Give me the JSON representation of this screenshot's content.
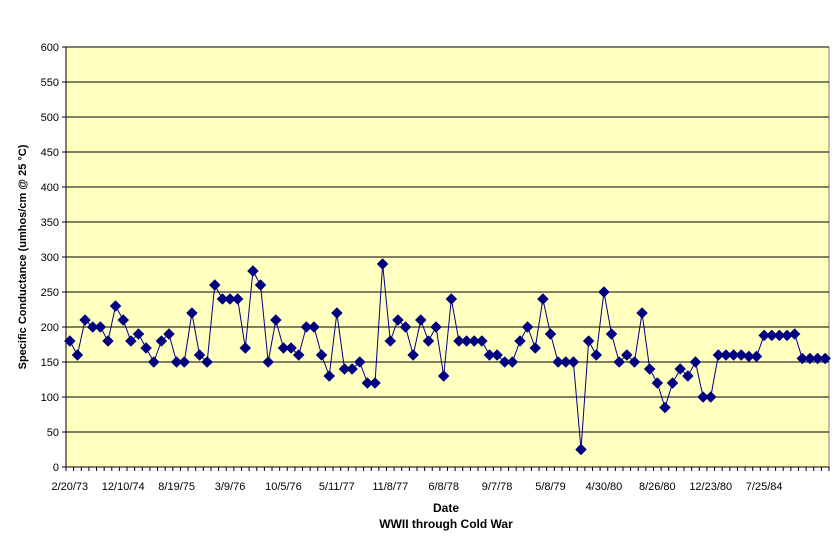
{
  "chart_data": {
    "type": "line",
    "title": "",
    "xlabel": "Date",
    "subtitle": "WWII through Cold War",
    "ylabel": "Specific Conductance (umhos/cm @ 25 °C)",
    "ylim": [
      0,
      600
    ],
    "yticks": [
      0,
      50,
      100,
      150,
      200,
      250,
      300,
      350,
      400,
      450,
      500,
      550,
      600
    ],
    "x_tick_labels": [
      {
        "label": "2/20/73",
        "index": 0
      },
      {
        "label": "12/10/74",
        "index": 7
      },
      {
        "label": "8/19/75",
        "index": 14
      },
      {
        "label": "3/9/76",
        "index": 21
      },
      {
        "label": "10/5/76",
        "index": 28
      },
      {
        "label": "5/11/77",
        "index": 35
      },
      {
        "label": "11/8/77",
        "index": 42
      },
      {
        "label": "6/8/78",
        "index": 49
      },
      {
        "label": "9/7/78",
        "index": 56
      },
      {
        "label": "5/8/79",
        "index": 63
      },
      {
        "label": "4/30/80",
        "index": 70
      },
      {
        "label": "8/26/80",
        "index": 77
      },
      {
        "label": "12/23/80",
        "index": 84
      },
      {
        "label": "7/25/84",
        "index": 91
      }
    ],
    "grid": "horizontal",
    "legend": "none",
    "colors": {
      "plot_background": "#FFFFC0",
      "series": "#000080",
      "gridline": "#000000"
    },
    "series": [
      {
        "values": [
          180,
          160,
          210,
          200,
          200,
          180,
          230,
          210,
          180,
          190,
          170,
          150,
          180,
          190,
          150,
          150,
          220,
          160,
          150,
          260,
          240,
          240,
          240,
          170,
          280,
          260,
          150,
          210,
          170,
          170,
          160,
          200,
          200,
          160,
          130,
          220,
          140,
          140,
          150,
          120,
          120,
          290,
          180,
          210,
          200,
          160,
          210,
          180,
          200,
          130,
          240,
          180,
          180,
          180,
          180,
          160,
          160,
          150,
          150,
          180,
          200,
          170,
          240,
          190,
          150,
          150,
          150,
          25,
          180,
          160,
          250,
          190,
          150,
          160,
          150,
          220,
          140,
          120,
          85,
          120,
          140,
          130,
          150,
          100,
          100,
          160,
          160,
          160,
          160,
          158,
          158,
          188,
          188,
          188,
          188,
          190,
          155,
          155,
          155,
          155
        ]
      }
    ]
  }
}
